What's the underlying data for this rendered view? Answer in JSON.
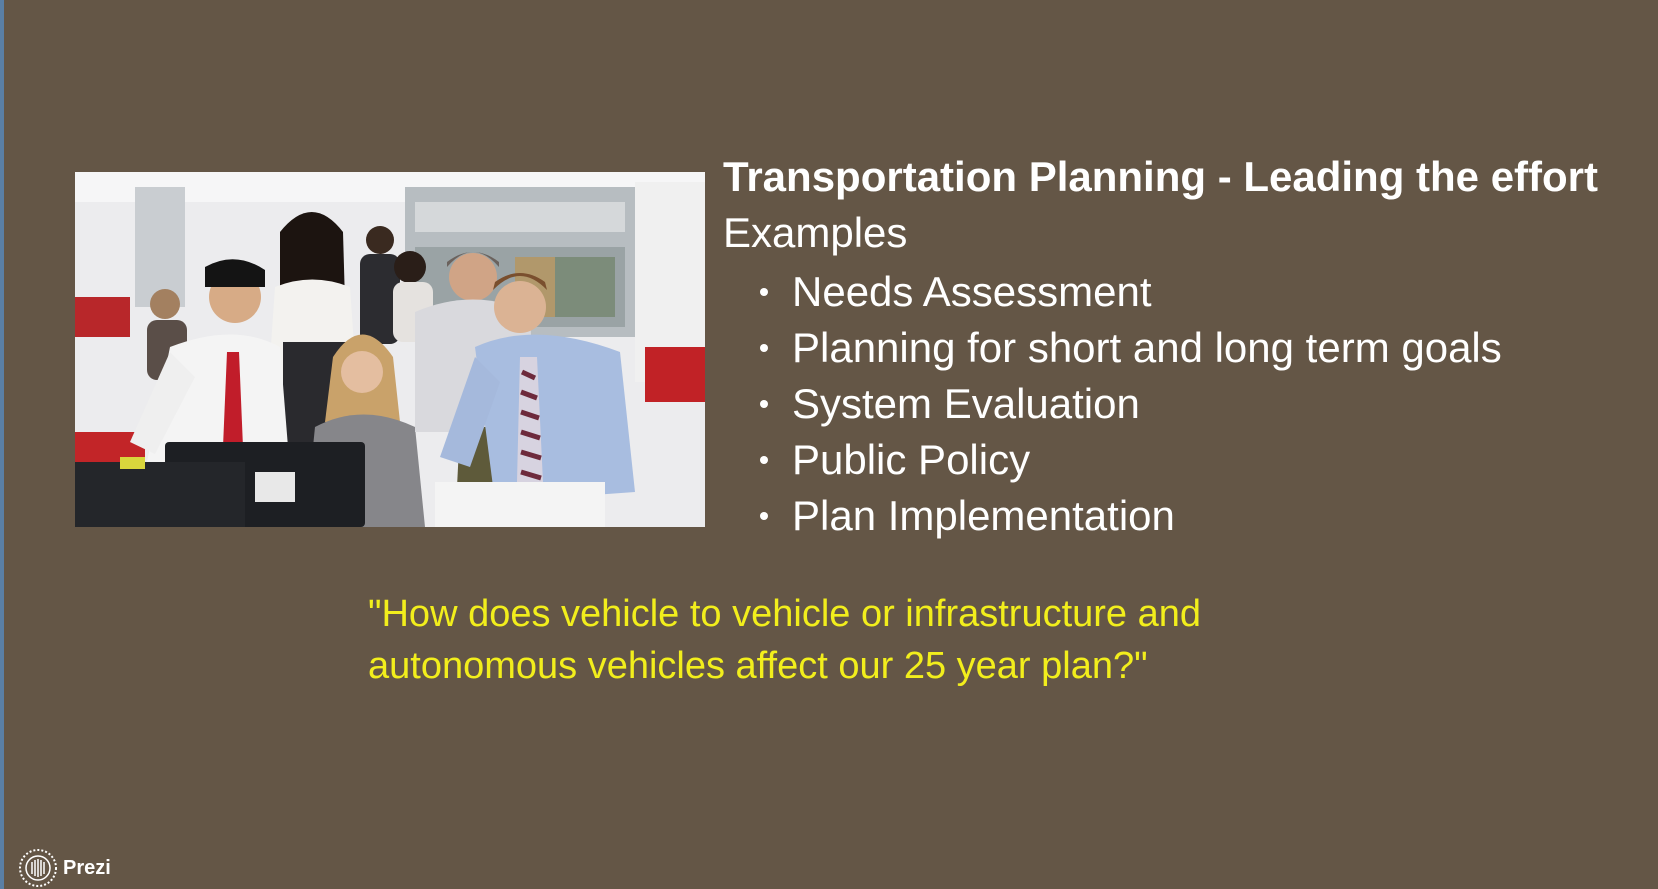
{
  "slide": {
    "title": "Transportation Planning - Leading the effort",
    "subtitle": "Examples",
    "bullets": [
      "Needs Assessment",
      "Planning for short and long term goals",
      "System Evaluation",
      "Public Policy",
      "Plan Implementation"
    ],
    "quote_line1": "\"How does vehicle to vehicle or infrastructure and",
    "quote_line2": "autonomous vehicles affect our 25 year plan?\"",
    "quote_color": "#f2ee1c",
    "background_color": "#645646"
  },
  "branding": {
    "logo_text": "Prezi",
    "logo_icon": "prezi-logo-icon"
  }
}
